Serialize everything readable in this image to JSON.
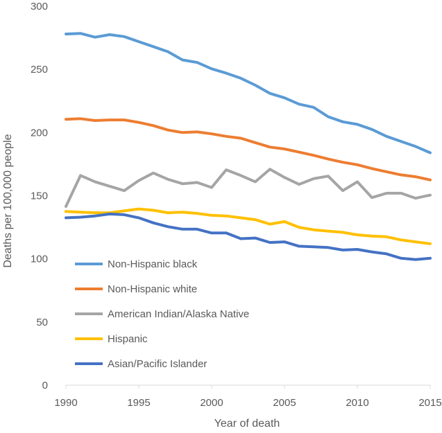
{
  "chart_data": {
    "type": "line",
    "title": "",
    "xlabel": "Year of death",
    "ylabel": "Deaths per 100,000 people",
    "xlim": [
      1990,
      2015
    ],
    "ylim": [
      0,
      300
    ],
    "xticks": [
      1990,
      1995,
      2000,
      2005,
      2010,
      2015
    ],
    "yticks": [
      0,
      50,
      100,
      150,
      200,
      250,
      300
    ],
    "grid": false,
    "legend_position": "bottom-left",
    "x": [
      1990,
      1991,
      1992,
      1993,
      1994,
      1995,
      1996,
      1997,
      1998,
      1999,
      2000,
      2001,
      2002,
      2003,
      2004,
      2005,
      2006,
      2007,
      2008,
      2009,
      2010,
      2011,
      2012,
      2013,
      2014,
      2015
    ],
    "series": [
      {
        "name": "Non-Hispanic black",
        "color": "#5B9BD5",
        "values": [
          278,
          278.5,
          275.5,
          277.5,
          276,
          272,
          268,
          264,
          257.5,
          255.5,
          250.5,
          247,
          243,
          237.5,
          231,
          227.5,
          222.5,
          220,
          212.5,
          208.5,
          206.5,
          202.5,
          197,
          193,
          189,
          184
        ]
      },
      {
        "name": "Non-Hispanic white",
        "color": "#ED7D31",
        "values": [
          210.5,
          211,
          209.5,
          210,
          210,
          208,
          205.5,
          202,
          200,
          200.5,
          199,
          197,
          195.5,
          192,
          188.5,
          187,
          184.5,
          182,
          179,
          176.5,
          174.5,
          171.5,
          169,
          166.5,
          165,
          162.5
        ]
      },
      {
        "name": "American Indian/Alaska Native",
        "color": "#A5A5A5",
        "values": [
          141.5,
          166,
          161,
          157.5,
          154,
          162,
          168,
          163,
          159.5,
          160.5,
          156.5,
          170.5,
          166,
          161,
          171,
          164.5,
          159,
          163.5,
          165.5,
          154,
          161,
          148.5,
          152,
          152,
          148,
          150.5
        ]
      },
      {
        "name": "Hispanic",
        "color": "#FFC000",
        "values": [
          137.5,
          137,
          136.5,
          136.5,
          138,
          139.5,
          138.5,
          136.5,
          137,
          136,
          134.5,
          134,
          132.5,
          131,
          127.5,
          129.5,
          125,
          123,
          122,
          121,
          119,
          118,
          117.5,
          115,
          113.5,
          112
        ]
      },
      {
        "name": "Asian/Pacific Islander",
        "color": "#4472C4",
        "values": [
          132.5,
          133,
          134,
          135.5,
          135,
          132.5,
          128.5,
          125.5,
          123.5,
          123.5,
          120.5,
          120.5,
          116,
          116.5,
          113,
          113.5,
          110,
          109.5,
          109,
          107,
          107.5,
          105.5,
          104,
          100.5,
          99.5,
          100.5
        ]
      }
    ]
  }
}
